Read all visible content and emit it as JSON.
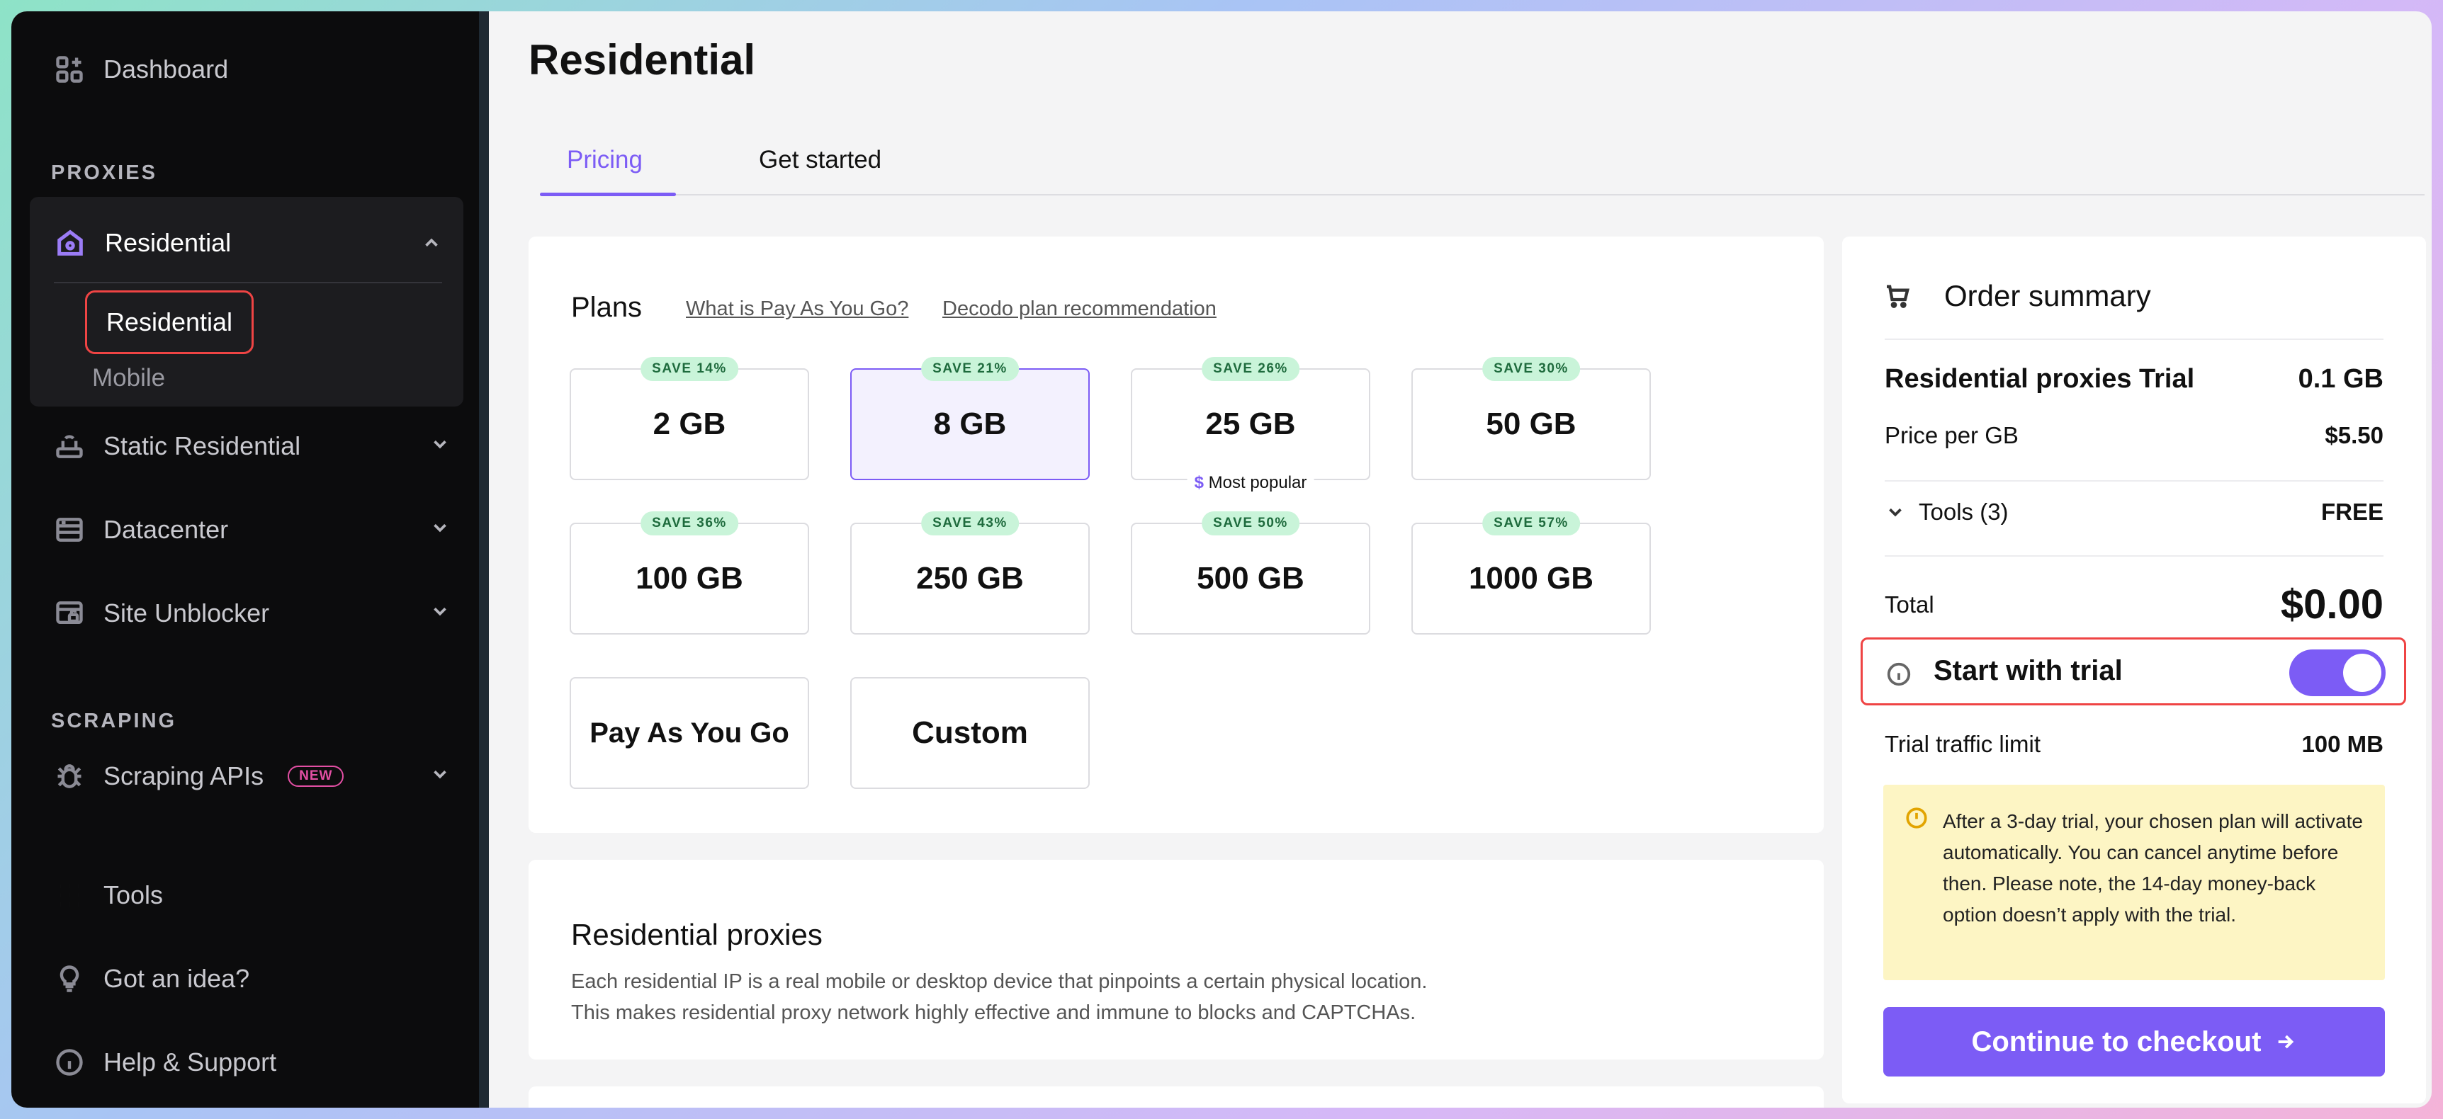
{
  "sidebar": {
    "dashboard": "Dashboard",
    "proxies_section": "PROXIES",
    "residential": {
      "label": "Residential",
      "sub_items": [
        "Residential",
        "Mobile"
      ]
    },
    "static_residential": "Static Residential",
    "datacenter": "Datacenter",
    "site_unblocker": "Site Unblocker",
    "scraping_section": "SCRAPING",
    "scraping_apis": "Scraping APIs",
    "scraping_apis_badge": "NEW",
    "tools": "Tools",
    "idea": "Got an idea?",
    "help": "Help & Support"
  },
  "page": {
    "title": "Residential",
    "tabs": [
      "Pricing",
      "Get started"
    ]
  },
  "plans": {
    "title": "Plans",
    "link_payg": "What is Pay As You Go?",
    "link_recommend": "Decodo plan recommendation",
    "items": [
      {
        "label": "2 GB",
        "save": "SAVE 14%"
      },
      {
        "label": "8 GB",
        "save": "SAVE 21%"
      },
      {
        "label": "25 GB",
        "save": "SAVE 26%",
        "tag": "Most popular"
      },
      {
        "label": "50 GB",
        "save": "SAVE 30%"
      },
      {
        "label": "100 GB",
        "save": "SAVE 36%"
      },
      {
        "label": "250 GB",
        "save": "SAVE 43%"
      },
      {
        "label": "500 GB",
        "save": "SAVE 50%"
      },
      {
        "label": "1000 GB",
        "save": "SAVE 57%"
      },
      {
        "label": "Pay As You Go"
      },
      {
        "label": "Custom"
      }
    ],
    "popular_symbol": "$"
  },
  "residential_proxies": {
    "title": "Residential proxies",
    "line1": "Each residential IP is a real mobile or desktop device that pinpoints a certain physical location.",
    "line2": "This makes residential proxy network highly effective and immune to blocks and CAPTCHAs."
  },
  "summary": {
    "title": "Order summary",
    "product": "Residential proxies Trial",
    "product_amount": "0.1 GB",
    "price_label": "Price per GB",
    "price_value": "$5.50",
    "tools_label": "Tools (3)",
    "tools_value": "FREE",
    "total_label": "Total",
    "total_value": "$0.00",
    "trial_label": "Start with trial",
    "trial_enabled": true,
    "trial_limit_label": "Trial traffic limit",
    "trial_limit_value": "100 MB",
    "notice": "After a 3-day trial, your chosen plan will activate automatically. You can cancel anytime before then. Please note, the 14-day money-back option doesn’t apply with the trial.",
    "checkout": "Continue to checkout"
  },
  "colors": {
    "accent": "#7c5cf5",
    "highlight": "#ef4444",
    "save_badge": "#c9f4d9",
    "notice_bg": "#fdf5c4"
  }
}
